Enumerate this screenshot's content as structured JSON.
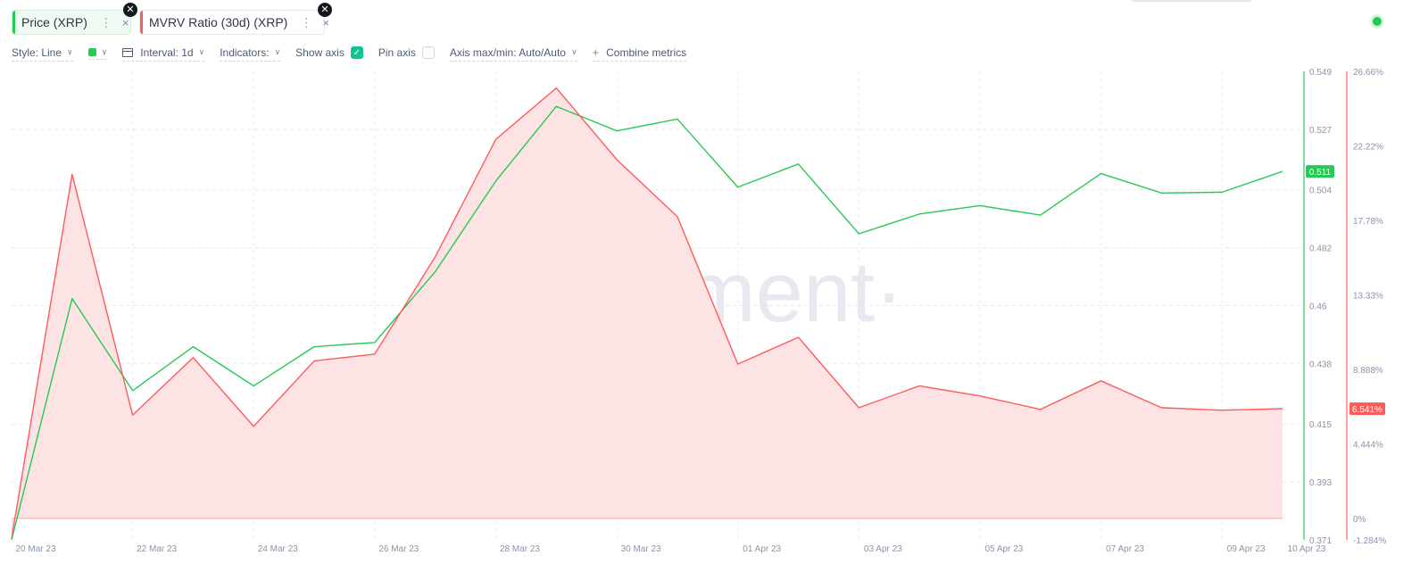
{
  "metrics": [
    {
      "label": "Price (XRP)",
      "color": "#26c953"
    },
    {
      "label": "MVRV Ratio (30d) (XRP)",
      "color": "#ff5b5b"
    }
  ],
  "toolbar": {
    "style": "Style: Line",
    "interval": "Interval: 1d",
    "indicators": "Indicators:",
    "show_axis": "Show axis",
    "pin_axis": "Pin axis",
    "axis_max_min": "Axis max/min: Auto/Auto",
    "combine": "Combine metrics",
    "show_axis_checked": true,
    "pin_axis_checked": false
  },
  "icons": {
    "tab_menu": "⋮",
    "tab_close": "×",
    "badge_close": "✕",
    "chevron": "∨",
    "check": "✓",
    "plus": "+"
  },
  "watermark": "·santiment·",
  "chart_data": {
    "type": "line",
    "x": [
      "20 Mar 23",
      "21 Mar 23",
      "22 Mar 23",
      "23 Mar 23",
      "24 Mar 23",
      "25 Mar 23",
      "26 Mar 23",
      "27 Mar 23",
      "28 Mar 23",
      "29 Mar 23",
      "30 Mar 23",
      "31 Mar 23",
      "01 Apr 23",
      "02 Apr 23",
      "03 Apr 23",
      "04 Apr 23",
      "05 Apr 23",
      "06 Apr 23",
      "07 Apr 23",
      "08 Apr 23",
      "09 Apr 23",
      "10 Apr 23"
    ],
    "x_tick_labels": [
      "20 Mar 23",
      "22 Mar 23",
      "24 Mar 23",
      "26 Mar 23",
      "28 Mar 23",
      "30 Mar 23",
      "01 Apr 23",
      "03 Apr 23",
      "05 Apr 23",
      "07 Apr 23",
      "09 Apr 23",
      "10 Apr 23"
    ],
    "series": [
      {
        "name": "Price (XRP)",
        "axis": "left",
        "color": "#26c953",
        "values": [
          0.371,
          0.4627,
          0.4277,
          0.4444,
          0.4295,
          0.4444,
          0.446,
          0.4729,
          0.5073,
          0.5357,
          0.5264,
          0.5309,
          0.505,
          0.5138,
          0.4873,
          0.4948,
          0.498,
          0.4944,
          0.5102,
          0.5028,
          0.5031,
          0.511
        ],
        "last_label": "0.511"
      },
      {
        "name": "MVRV Ratio (30d) (XRP)",
        "axis": "right",
        "color": "#ff5b5b",
        "fill": "#fde3e3",
        "values": [
          -1.2,
          20.52,
          6.16,
          9.59,
          5.49,
          9.39,
          9.8,
          15.6,
          22.6,
          25.67,
          21.4,
          18.0,
          9.2,
          10.8,
          6.6,
          7.9,
          7.3,
          6.5,
          8.2,
          6.6,
          6.45,
          6.541
        ],
        "last_label": "6.541%"
      }
    ],
    "y_left": {
      "ticks": [
        "0.549",
        "0.527",
        "0.504",
        "0.482",
        "0.46",
        "0.438",
        "0.415",
        "0.393",
        "0.371"
      ],
      "min": 0.371,
      "max": 0.549
    },
    "y_right": {
      "ticks": [
        "26.66%",
        "22.22%",
        "17.78%",
        "13.33%",
        "8.888%",
        "4.444%",
        "0%",
        "-1.284%"
      ],
      "min": -1.284,
      "max": 26.66
    },
    "grid": true
  }
}
